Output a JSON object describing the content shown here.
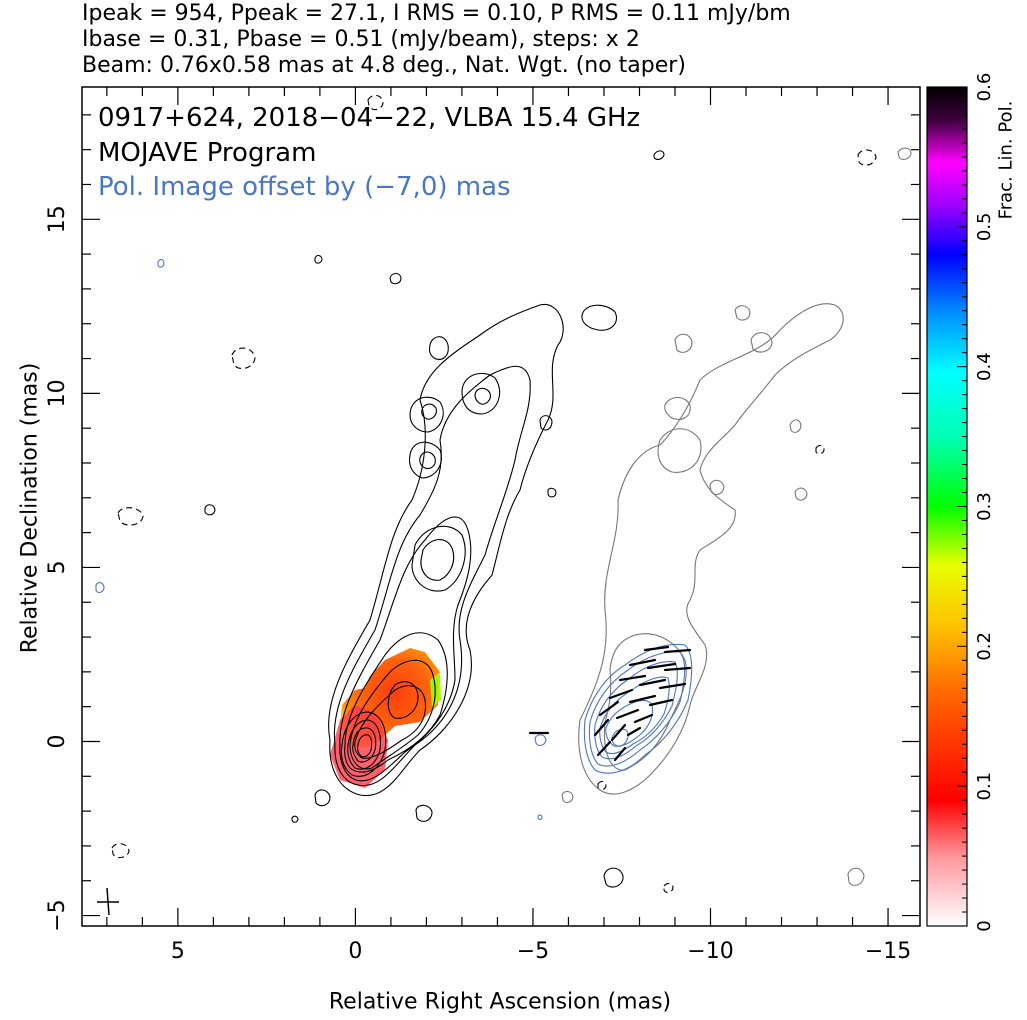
{
  "header": {
    "line1": "Ipeak = 954, Ppeak = 27.1, I RMS = 0.10, P RMS = 0.11 mJy/bm",
    "line2": "Ibase = 0.31, Pbase = 0.51 (mJy/beam), steps: x 2",
    "line3": "Beam: 0.76x0.58 mas at 4.8 deg., Nat. Wgt. (no taper)"
  },
  "annotations": {
    "source": "0917+624, 2018−04−22, VLBA 15.4 GHz",
    "program": "MOJAVE Program",
    "offset": "Pol. Image offset by (−7,0) mas"
  },
  "colors": {
    "total_intensity_contours": "#000000",
    "pol_contours": "#4a76c8",
    "offset_image_contours": "#777777",
    "evpa_sticks": "#000000"
  },
  "chart_data": {
    "type": "contour",
    "xlabel": "Relative Right Ascension (mas)",
    "ylabel": "Relative Declination (mas)",
    "xlim": [
      7.7,
      -15.9
    ],
    "ylim": [
      -5.3,
      18.8
    ],
    "x_ticks": [
      5,
      0,
      -5,
      -10,
      -15
    ],
    "x_tick_labels": [
      "5",
      "0",
      "−5",
      "−10",
      "−15"
    ],
    "y_ticks": [
      -5,
      0,
      5,
      10,
      15
    ],
    "y_tick_labels": [
      "−5",
      "0",
      "5",
      "10",
      "15"
    ],
    "peak_position": [
      0,
      0
    ],
    "jet_direction": "north-west",
    "pol_image_offset": [
      -7,
      0
    ],
    "colorbar": {
      "label": "Frac. Lin. Pol.",
      "range": [
        0,
        0.6
      ],
      "ticks": [
        0,
        0.1,
        0.2,
        0.3,
        0.4,
        0.5,
        0.6
      ],
      "tick_labels": [
        "0",
        "0.1",
        "0.2",
        "0.3",
        "0.4",
        "0.5",
        "0.6"
      ]
    },
    "fractional_pol_range_shown": [
      0.08,
      0.25
    ]
  }
}
